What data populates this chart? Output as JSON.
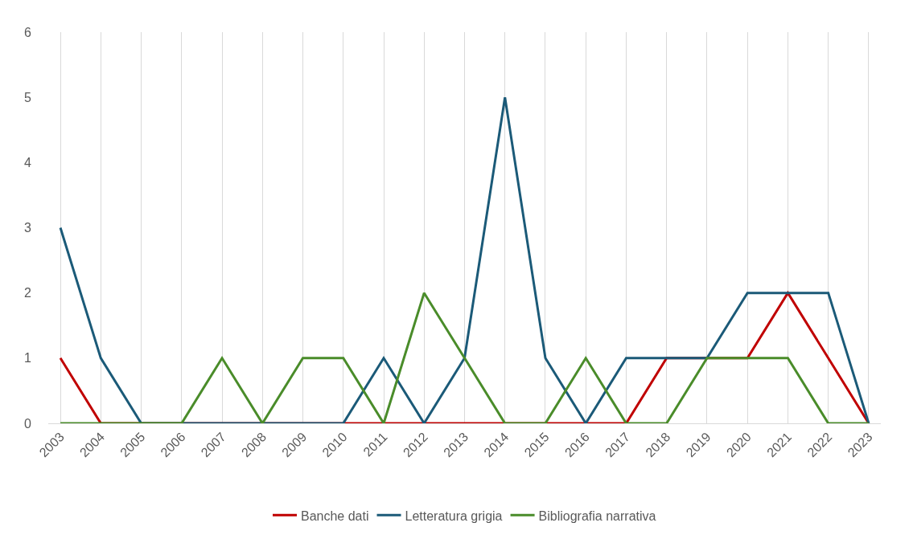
{
  "chart_data": {
    "type": "line",
    "categories": [
      "2003",
      "2004",
      "2005",
      "2006",
      "2007",
      "2008",
      "2009",
      "2010",
      "2011",
      "2012",
      "2013",
      "2014",
      "2015",
      "2016",
      "2017",
      "2018",
      "2019",
      "2020",
      "2021",
      "2022",
      "2023"
    ],
    "series": [
      {
        "name": "Banche dati",
        "color": "#c00000",
        "values": [
          1,
          0,
          0,
          0,
          0,
          0,
          0,
          0,
          0,
          0,
          0,
          0,
          0,
          0,
          0,
          1,
          1,
          1,
          2,
          1,
          0
        ]
      },
      {
        "name": "Letteratura grigia",
        "color": "#1b5a78",
        "values": [
          3,
          1,
          0,
          0,
          0,
          0,
          0,
          0,
          1,
          0,
          1,
          5,
          1,
          0,
          1,
          1,
          1,
          2,
          2,
          2,
          0
        ]
      },
      {
        "name": "Bibliografia narrativa",
        "color": "#4a8c2a",
        "values": [
          0,
          0,
          0,
          0,
          1,
          0,
          1,
          1,
          0,
          2,
          1,
          0,
          0,
          1,
          0,
          0,
          1,
          1,
          1,
          0,
          0
        ]
      }
    ],
    "ylim": [
      0,
      6
    ],
    "yticks": [
      0,
      1,
      2,
      3,
      4,
      5,
      6
    ],
    "grid": "x",
    "legend": "bottom",
    "marker": "none",
    "line_style": "solid"
  }
}
